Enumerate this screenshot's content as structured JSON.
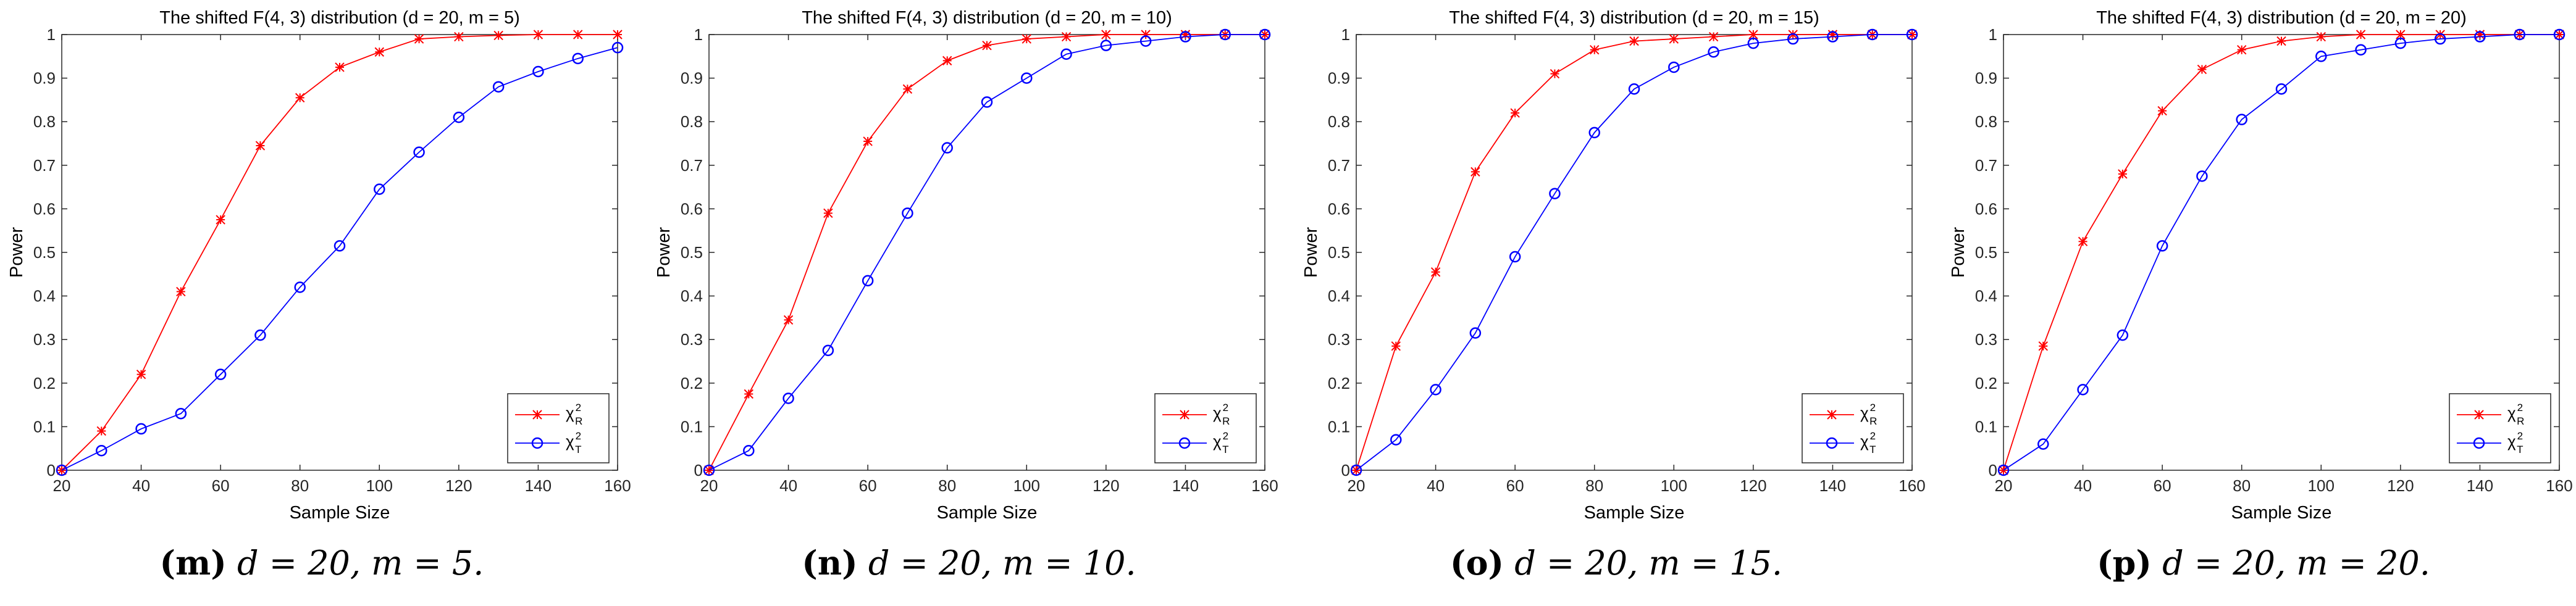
{
  "figure": {
    "axis_ylabel": "Power",
    "axis_xlabel": "Sample Size",
    "legend_labels": [
      "χ_R^2",
      "χ_T^2"
    ],
    "series_colors": {
      "chi_R": "#ff0000",
      "chi_T": "#0000ff"
    }
  },
  "chart_data": [
    {
      "type": "line",
      "title": "The shifted F(4, 3) distribution (d = 20, m = 5)",
      "xlabel": "Sample Size",
      "ylabel": "Power",
      "x": [
        20,
        30,
        40,
        50,
        60,
        70,
        80,
        90,
        100,
        110,
        120,
        130,
        140,
        150,
        160
      ],
      "xlim": [
        20,
        160
      ],
      "ylim": [
        0,
        1
      ],
      "xticks": [
        20,
        40,
        60,
        80,
        100,
        120,
        140,
        160
      ],
      "yticks": [
        0,
        0.1,
        0.2,
        0.3,
        0.4,
        0.5,
        0.6,
        0.7,
        0.8,
        0.9,
        1
      ],
      "legend_position": "bottom-right",
      "series": [
        {
          "name": "χ_R^2",
          "marker": "x",
          "color": "#ff0000",
          "values": [
            0,
            0.09,
            0.22,
            0.41,
            0.575,
            0.745,
            0.855,
            0.925,
            0.96,
            0.99,
            0.995,
            0.998,
            1.0,
            1.0,
            1.0
          ]
        },
        {
          "name": "χ_T^2",
          "marker": "o",
          "color": "#0000ff",
          "values": [
            0,
            0.045,
            0.095,
            0.13,
            0.22,
            0.31,
            0.42,
            0.515,
            0.645,
            0.73,
            0.81,
            0.88,
            0.915,
            0.945,
            0.97
          ]
        }
      ],
      "caption": {
        "letter": "(m)",
        "math": "d = 20, m = 5."
      }
    },
    {
      "type": "line",
      "title": "The shifted F(4, 3) distribution (d = 20, m = 10)",
      "xlabel": "Sample Size",
      "ylabel": "Power",
      "x": [
        20,
        30,
        40,
        50,
        60,
        70,
        80,
        90,
        100,
        110,
        120,
        130,
        140,
        150,
        160
      ],
      "xlim": [
        20,
        160
      ],
      "ylim": [
        0,
        1
      ],
      "xticks": [
        20,
        40,
        60,
        80,
        100,
        120,
        140,
        160
      ],
      "yticks": [
        0,
        0.1,
        0.2,
        0.3,
        0.4,
        0.5,
        0.6,
        0.7,
        0.8,
        0.9,
        1
      ],
      "legend_position": "bottom-right",
      "series": [
        {
          "name": "χ_R^2",
          "marker": "x",
          "color": "#ff0000",
          "values": [
            0,
            0.175,
            0.345,
            0.59,
            0.755,
            0.875,
            0.94,
            0.975,
            0.99,
            0.995,
            1.0,
            1.0,
            1.0,
            1.0,
            1.0
          ]
        },
        {
          "name": "χ_T^2",
          "marker": "o",
          "color": "#0000ff",
          "values": [
            0,
            0.045,
            0.165,
            0.275,
            0.435,
            0.59,
            0.74,
            0.845,
            0.9,
            0.955,
            0.975,
            0.985,
            0.995,
            1.0,
            1.0
          ]
        }
      ],
      "caption": {
        "letter": "(n)",
        "math": "d = 20, m = 10."
      }
    },
    {
      "type": "line",
      "title": "The shifted F(4, 3) distribution (d = 20, m = 15)",
      "xlabel": "Sample Size",
      "ylabel": "Power",
      "x": [
        20,
        30,
        40,
        50,
        60,
        70,
        80,
        90,
        100,
        110,
        120,
        130,
        140,
        150,
        160
      ],
      "xlim": [
        20,
        160
      ],
      "ylim": [
        0,
        1
      ],
      "xticks": [
        20,
        40,
        60,
        80,
        100,
        120,
        140,
        160
      ],
      "yticks": [
        0,
        0.1,
        0.2,
        0.3,
        0.4,
        0.5,
        0.6,
        0.7,
        0.8,
        0.9,
        1
      ],
      "legend_position": "bottom-right",
      "series": [
        {
          "name": "χ_R^2",
          "marker": "x",
          "color": "#ff0000",
          "values": [
            0,
            0.285,
            0.455,
            0.685,
            0.82,
            0.91,
            0.965,
            0.985,
            0.99,
            0.995,
            1.0,
            1.0,
            1.0,
            1.0,
            1.0
          ]
        },
        {
          "name": "χ_T^2",
          "marker": "o",
          "color": "#0000ff",
          "values": [
            0,
            0.07,
            0.185,
            0.315,
            0.49,
            0.635,
            0.775,
            0.875,
            0.925,
            0.96,
            0.98,
            0.99,
            0.995,
            1.0,
            1.0
          ]
        }
      ],
      "caption": {
        "letter": "(o)",
        "math": "d = 20, m = 15."
      }
    },
    {
      "type": "line",
      "title": "The shifted F(4, 3) distribution (d = 20, m = 20)",
      "xlabel": "Sample Size",
      "ylabel": "Power",
      "x": [
        20,
        30,
        40,
        50,
        60,
        70,
        80,
        90,
        100,
        110,
        120,
        130,
        140,
        150,
        160
      ],
      "xlim": [
        20,
        160
      ],
      "ylim": [
        0,
        1
      ],
      "xticks": [
        20,
        40,
        60,
        80,
        100,
        120,
        140,
        160
      ],
      "yticks": [
        0,
        0.1,
        0.2,
        0.3,
        0.4,
        0.5,
        0.6,
        0.7,
        0.8,
        0.9,
        1
      ],
      "legend_position": "bottom-right",
      "series": [
        {
          "name": "χ_R^2",
          "marker": "x",
          "color": "#ff0000",
          "values": [
            0,
            0.285,
            0.525,
            0.68,
            0.825,
            0.92,
            0.965,
            0.985,
            0.995,
            1.0,
            1.0,
            1.0,
            1.0,
            1.0,
            1.0
          ]
        },
        {
          "name": "χ_T^2",
          "marker": "o",
          "color": "#0000ff",
          "values": [
            0,
            0.06,
            0.185,
            0.31,
            0.515,
            0.675,
            0.805,
            0.875,
            0.95,
            0.965,
            0.98,
            0.99,
            0.995,
            1.0,
            1.0
          ]
        }
      ],
      "caption": {
        "letter": "(p)",
        "math": "d = 20, m = 20."
      }
    }
  ]
}
